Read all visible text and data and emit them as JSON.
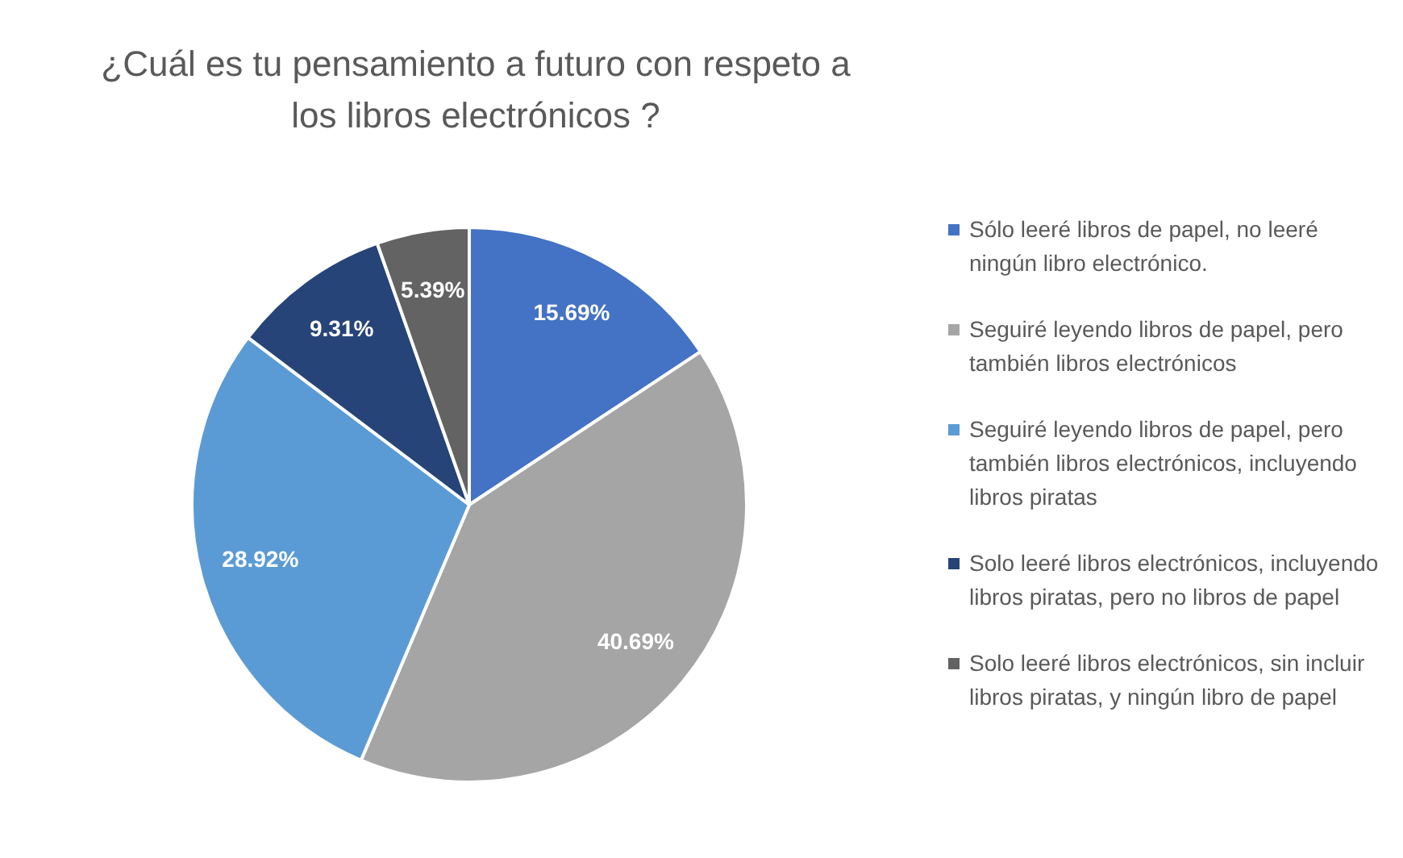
{
  "chart_data": {
    "type": "pie",
    "title": "¿Cuál es tu pensamiento a futuro con respeto a los libros electrónicos ?",
    "categories": [
      "Sólo leeré libros de papel, no leeré ningún libro electrónico.",
      "Seguiré leyendo libros de papel, pero también libros electrónicos",
      "Seguiré leyendo libros de papel, pero también libros electrónicos, incluyendo libros piratas",
      "Solo leeré libros electrónicos, incluyendo libros piratas, pero no libros de papel",
      "Solo leeré libros electrónicos, sin incluir libros piratas, y ningún libro de papel"
    ],
    "values": [
      15.69,
      40.69,
      28.92,
      9.31,
      5.39
    ],
    "value_labels": [
      "15.69%",
      "40.69%",
      "28.92%",
      "9.31%",
      "5.39%"
    ],
    "colors": [
      "#4472c4",
      "#a5a5a5",
      "#5b9bd5",
      "#264478",
      "#636363"
    ],
    "legend": "right"
  }
}
